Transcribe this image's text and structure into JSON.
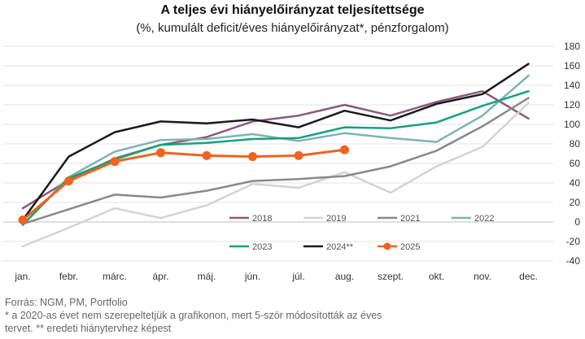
{
  "chart_data": {
    "type": "line",
    "title": "A teljes évi hiányelőirányzat teljesítettsége",
    "subtitle": "(%, kumulált deficit/éves hiányelőirányzat*, pénzforgalom)",
    "categories": [
      "jan.",
      "febr.",
      "márc.",
      "ápr.",
      "máj.",
      "jún.",
      "júl.",
      "aug.",
      "szept.",
      "okt.",
      "nov.",
      "dec."
    ],
    "yticks": [
      -40,
      -20,
      0,
      20,
      40,
      60,
      80,
      100,
      120,
      140,
      160,
      180
    ],
    "ylim": [
      -40,
      180
    ],
    "grid": true,
    "series": [
      {
        "name": "2018",
        "color": "#8b5a7a",
        "width": 2.5,
        "markers": false,
        "values": [
          14,
          43,
          65,
          79,
          87,
          103,
          109,
          120,
          109,
          123,
          134,
          106
        ]
      },
      {
        "name": "2019",
        "color": "#d3d3d3",
        "width": 2.5,
        "markers": false,
        "values": [
          -25,
          -6,
          14,
          4,
          17,
          39,
          35,
          51,
          30,
          57,
          77,
          122
        ]
      },
      {
        "name": "2021",
        "color": "#898989",
        "width": 2.5,
        "markers": false,
        "values": [
          -2,
          13,
          28,
          25,
          32,
          42,
          44,
          47,
          57,
          73,
          98,
          127
        ]
      },
      {
        "name": "2022",
        "color": "#7fb2b5",
        "width": 2.5,
        "markers": false,
        "values": [
          -3,
          46,
          72,
          84,
          85,
          90,
          83,
          91,
          86,
          82,
          109,
          150
        ]
      },
      {
        "name": "2023",
        "color": "#16a27b",
        "width": 2.5,
        "markers": false,
        "values": [
          -3,
          45,
          64,
          79,
          81,
          85,
          86,
          97,
          96,
          102,
          119,
          134
        ]
      },
      {
        "name": "2024**",
        "color": "#1a1a1a",
        "width": 2.5,
        "markers": false,
        "values": [
          2,
          67,
          92,
          103,
          101,
          105,
          97,
          114,
          104,
          121,
          131,
          162
        ]
      },
      {
        "name": "2025",
        "color": "#f0631e",
        "width": 3,
        "markers": true,
        "values": [
          2,
          42,
          62,
          71,
          68,
          67,
          68,
          74,
          null,
          null,
          null,
          null
        ]
      }
    ],
    "legend": [
      [
        "2018",
        "2019",
        "2021",
        "2022"
      ],
      [
        "2023",
        "2024**",
        "2025"
      ]
    ]
  },
  "footnotes": [
    "Forrás: NGM, PM, Portfolio",
    "* a 2020-as évet nem szerepeltetjük a grafikonon, mert 5-ször módosították az éves",
    "tervet. ** eredeti hiánytervhez képest"
  ]
}
